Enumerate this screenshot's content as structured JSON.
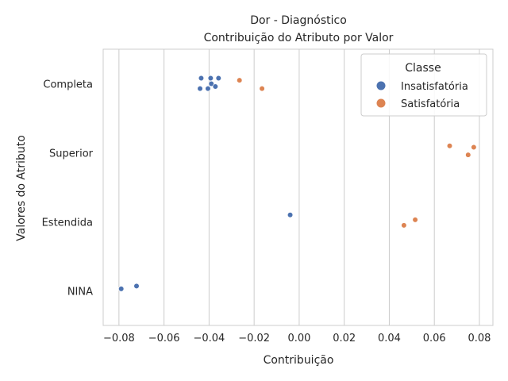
{
  "chart_data": {
    "type": "scatter",
    "title": "Dor - Diagnóstico",
    "subtitle": "Contribuição do Atributo por Valor",
    "xlabel": "Contribuição",
    "ylabel": "Valores do Atributo",
    "xlim": [
      -0.087,
      0.086
    ],
    "x_ticks": [
      -0.08,
      -0.06,
      -0.04,
      -0.02,
      0.0,
      0.02,
      0.04,
      0.06,
      0.08
    ],
    "x_tick_labels": [
      "−0.08",
      "−0.06",
      "−0.04",
      "−0.02",
      "0.00",
      "0.02",
      "0.04",
      "0.06",
      "0.08"
    ],
    "categories": [
      "Completa",
      "Superior",
      "Estendida",
      "NINA"
    ],
    "grid": "vertical",
    "legend": {
      "title": "Classe",
      "placement": "top-right",
      "entries": [
        "Insatisfatória",
        "Satisfatória"
      ]
    },
    "series": [
      {
        "name": "Insatisfatória",
        "color": "#4c72b0",
        "points": [
          {
            "category": "Completa",
            "x": -0.0435,
            "jitter": -0.08
          },
          {
            "category": "Completa",
            "x": -0.0393,
            "jitter": -0.08
          },
          {
            "category": "Completa",
            "x": -0.0358,
            "jitter": -0.08
          },
          {
            "category": "Completa",
            "x": -0.039,
            "jitter": 0.0
          },
          {
            "category": "Completa",
            "x": -0.044,
            "jitter": 0.07
          },
          {
            "category": "Completa",
            "x": -0.0405,
            "jitter": 0.07
          },
          {
            "category": "Completa",
            "x": -0.0372,
            "jitter": 0.04
          },
          {
            "category": "Estendida",
            "x": -0.004,
            "jitter": -0.1
          },
          {
            "category": "NINA",
            "x": -0.0722,
            "jitter": -0.07
          },
          {
            "category": "NINA",
            "x": -0.079,
            "jitter": -0.03
          }
        ]
      },
      {
        "name": "Satisfatória",
        "color": "#dd8452",
        "points": [
          {
            "category": "Completa",
            "x": -0.0265,
            "jitter": -0.05
          },
          {
            "category": "Completa",
            "x": -0.0165,
            "jitter": 0.07
          },
          {
            "category": "Superior",
            "x": 0.0668,
            "jitter": -0.1
          },
          {
            "category": "Superior",
            "x": 0.0775,
            "jitter": -0.08
          },
          {
            "category": "Superior",
            "x": 0.075,
            "jitter": 0.03
          },
          {
            "category": "Estendida",
            "x": 0.0515,
            "jitter": -0.03
          },
          {
            "category": "Estendida",
            "x": 0.0465,
            "jitter": 0.05
          }
        ]
      }
    ]
  }
}
